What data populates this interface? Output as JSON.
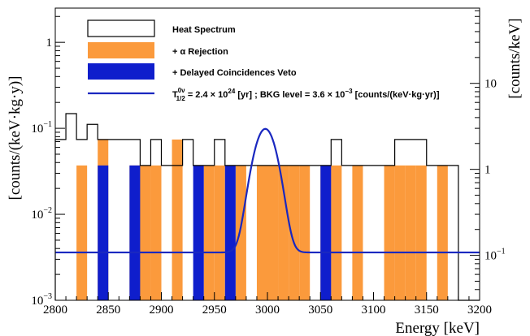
{
  "chart_data": {
    "type": "histogram",
    "xlabel": "Energy [keV]",
    "ylabel_left": "[counts/(keV·kg·y)]",
    "ylabel_right": "[counts/keV]",
    "xlim": [
      2800,
      3200
    ],
    "ylim_left": [
      0.001,
      2.5
    ],
    "ylim_right": [
      0.03,
      75
    ],
    "y_scale": "log",
    "bin_width": 10,
    "x_ticks": [
      2800,
      2850,
      2900,
      2950,
      3000,
      3050,
      3100,
      3150,
      3200
    ],
    "x_tick_labels": [
      "2800",
      "2850",
      "2900",
      "2950",
      "3000",
      "3050",
      "3100",
      "3150",
      "3200"
    ],
    "y_left_ticks": [
      {
        "value": 1,
        "base": "1",
        "exp": ""
      },
      {
        "value": 0.1,
        "base": "10",
        "exp": "−1"
      },
      {
        "value": 0.01,
        "base": "10",
        "exp": "−2"
      },
      {
        "value": 0.001,
        "base": "10",
        "exp": "−3"
      }
    ],
    "y_right_ticks": [
      {
        "value": 10,
        "base": "10",
        "exp": ""
      },
      {
        "value": 1,
        "base": "1",
        "exp": ""
      },
      {
        "value": 0.1,
        "base": "10",
        "exp": "−1"
      }
    ],
    "series": [
      {
        "name": "Heat Spectrum",
        "color": "#000000",
        "style": "outline",
        "bins_start": [
          2800,
          2810,
          2820,
          2830,
          2840,
          2850,
          2860,
          2870,
          2880,
          2890,
          2900,
          2910,
          2920,
          2930,
          2940,
          2950,
          2960,
          2970,
          2980,
          2990,
          3000,
          3010,
          3020,
          3030,
          3040,
          3050,
          3060,
          3070,
          3080,
          3090,
          3100,
          3110,
          3120,
          3130,
          3140,
          3150,
          3160,
          3170,
          3180,
          3190
        ],
        "values": [
          0.0741,
          0.1481,
          0.0741,
          0.1111,
          0.0741,
          0.0741,
          0.0741,
          0.0741,
          0.037,
          0.0741,
          0.037,
          0.037,
          0.0741,
          0.037,
          0.037,
          0.0741,
          0.037,
          0.037,
          0.037,
          0.037,
          0.037,
          0.037,
          0.037,
          0.037,
          0.037,
          0.037,
          0.0741,
          0.037,
          0.037,
          0.037,
          0.037,
          0.037,
          0.0741,
          0.0741,
          0.0741,
          0.037,
          0.037,
          0.037,
          0,
          0
        ]
      },
      {
        "name": "+ α Rejection",
        "color": "#fb9a3c",
        "style": "filled",
        "bins_start": [
          2820,
          2840,
          2870,
          2880,
          2890,
          2910,
          2940,
          2950,
          2970,
          2990,
          3000,
          3010,
          3020,
          3030,
          3050,
          3060,
          3080,
          3110,
          3120,
          3130,
          3140,
          3160
        ],
        "values": [
          0.037,
          0.0741,
          0.037,
          0.037,
          0.037,
          0.0741,
          0.037,
          0.037,
          0.037,
          0.037,
          0.037,
          0.037,
          0.037,
          0.037,
          0.037,
          0.037,
          0.037,
          0.037,
          0.037,
          0.037,
          0.037,
          0.037
        ]
      },
      {
        "name": "+ Delayed Coincidences Veto",
        "color": "#0f1ecc",
        "style": "filled",
        "bins_start": [
          2840,
          2870,
          2930,
          2960,
          3050
        ],
        "values": [
          0.037,
          0.037,
          0.037,
          0.037,
          0.037
        ]
      }
    ],
    "fit": {
      "name_prefix": "T",
      "name_sup": "0ν",
      "name_sub": "1/2",
      "name_rest": " = 2.4 × 10",
      "name_exp1": "24",
      "name_mid": " [yr] ; BKG level = 3.6 × 10",
      "name_exp2": "−3",
      "name_end": " [counts/(keV·kg·yr)]",
      "color": "#1a28c0",
      "background_level": 0.0036,
      "peak_center": 2998,
      "peak_sigma": 9,
      "peak_max": 0.095
    }
  }
}
